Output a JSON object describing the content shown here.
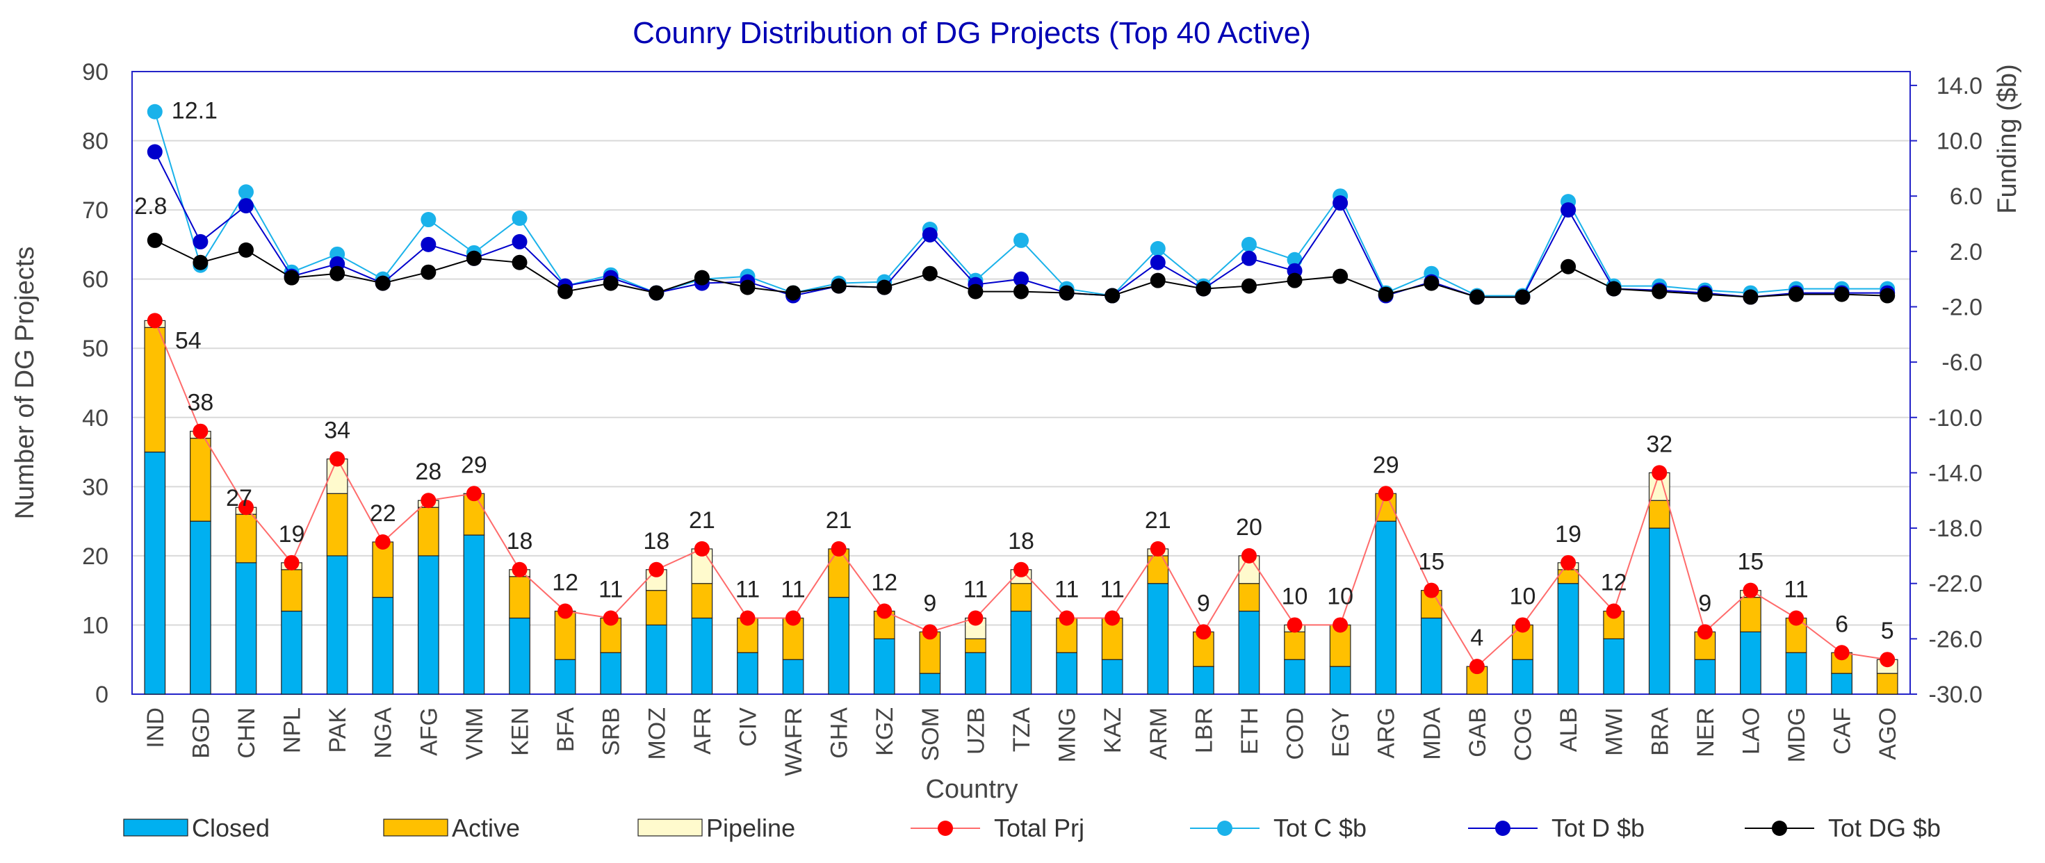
{
  "chart_data": {
    "type": "bar",
    "title": "Counry Distribution of DG Projects (Top 40 Active)",
    "xlabel": "Country",
    "ylabel": "Number of DG Projects",
    "y2label": "Funding ($b)",
    "ylim": [
      0,
      90
    ],
    "y2lim": [
      -30,
      15
    ],
    "yticks": [
      "0",
      "10",
      "20",
      "30",
      "40",
      "50",
      "60",
      "70",
      "80",
      "90"
    ],
    "y2ticks": [
      "-30.0",
      "-26.0",
      "-22.0",
      "-18.0",
      "-14.0",
      "-10.0",
      "-6.0",
      "-2.0",
      "2.0",
      "6.0",
      "10.0",
      "14.0"
    ],
    "categories": [
      "IND",
      "BGD",
      "CHN",
      "NPL",
      "PAK",
      "NGA",
      "AFG",
      "VNM",
      "KEN",
      "BFA",
      "SRB",
      "MOZ",
      "AFR",
      "CIV",
      "WAFR",
      "GHA",
      "KGZ",
      "SOM",
      "UZB",
      "TZA",
      "MNG",
      "KAZ",
      "ARM",
      "LBR",
      "ETH",
      "COD",
      "EGY",
      "ARG",
      "MDA",
      "GAB",
      "COG",
      "ALB",
      "MWI",
      "BRA",
      "NER",
      "LAO",
      "MDG",
      "CAF",
      "AGO"
    ],
    "series": [
      {
        "name": "Closed",
        "kind": "bar",
        "color": "#00b0f0",
        "values": [
          35,
          25,
          19,
          12,
          20,
          14,
          20,
          23,
          11,
          5,
          6,
          10,
          11,
          6,
          5,
          14,
          8,
          3,
          6,
          12,
          6,
          5,
          16,
          4,
          12,
          5,
          4,
          25,
          11,
          0,
          5,
          16,
          8,
          24,
          5,
          9,
          6,
          3,
          0
        ]
      },
      {
        "name": "Active",
        "kind": "bar",
        "color": "#ffc000",
        "values": [
          18,
          12,
          7,
          6,
          9,
          8,
          7,
          6,
          6,
          7,
          5,
          5,
          5,
          5,
          6,
          7,
          4,
          6,
          2,
          4,
          5,
          6,
          4,
          5,
          4,
          4,
          6,
          4,
          4,
          4,
          5,
          2,
          4,
          4,
          4,
          5,
          5,
          3,
          3
        ]
      },
      {
        "name": "Pipeline",
        "kind": "bar",
        "color": "#fffacd",
        "values": [
          1,
          1,
          1,
          1,
          5,
          0,
          1,
          0,
          1,
          0,
          0,
          3,
          5,
          0,
          0,
          0,
          0,
          0,
          3,
          2,
          0,
          0,
          1,
          0,
          4,
          1,
          0,
          0,
          0,
          0,
          0,
          1,
          0,
          4,
          0,
          1,
          0,
          0,
          2
        ]
      },
      {
        "name": "Total Prj",
        "kind": "line",
        "axis": "left",
        "color": "#ff0000",
        "line_color": "#ff6b6b",
        "values": [
          54,
          38,
          27,
          19,
          34,
          22,
          28,
          29,
          18,
          12,
          11,
          18,
          21,
          11,
          11,
          21,
          12,
          9,
          11,
          18,
          11,
          11,
          21,
          9,
          20,
          10,
          10,
          29,
          15,
          4,
          10,
          19,
          12,
          32,
          9,
          15,
          11,
          6,
          5
        ]
      },
      {
        "name": "Tot C $b",
        "kind": "line",
        "axis": "right",
        "color": "#1ab2ea",
        "values": [
          12.1,
          1.0,
          6.3,
          0.5,
          1.8,
          0.0,
          4.3,
          1.9,
          4.4,
          -0.5,
          0.3,
          -1.0,
          0.0,
          0.2,
          -1.0,
          -0.3,
          -0.2,
          3.6,
          -0.1,
          2.8,
          -0.7,
          -1.2,
          2.2,
          -0.5,
          2.5,
          1.4,
          6.0,
          -1.0,
          0.4,
          -1.2,
          -1.2,
          5.6,
          -0.5,
          -0.5,
          -0.8,
          -1.0,
          -0.7,
          -0.7,
          -0.7
        ]
      },
      {
        "name": "Tot D $b",
        "kind": "line",
        "axis": "right",
        "color": "#0000cc",
        "values": [
          9.2,
          2.7,
          5.3,
          0.2,
          1.1,
          -0.3,
          2.5,
          1.5,
          2.7,
          -0.5,
          0.1,
          -1.0,
          -0.3,
          -0.2,
          -1.2,
          -0.5,
          -0.6,
          3.2,
          -0.4,
          0.0,
          -1.0,
          -1.2,
          1.2,
          -0.7,
          1.5,
          0.6,
          5.5,
          -1.2,
          -0.2,
          -1.3,
          -1.3,
          5.0,
          -0.7,
          -0.8,
          -1.0,
          -1.3,
          -1.0,
          -1.0,
          -1.0
        ]
      },
      {
        "name": "Tot DG $b",
        "kind": "line",
        "axis": "right",
        "color": "#000000",
        "values": [
          2.8,
          1.2,
          2.1,
          0.1,
          0.4,
          -0.3,
          0.5,
          1.5,
          1.2,
          -0.9,
          -0.3,
          -1.0,
          0.1,
          -0.6,
          -1.0,
          -0.5,
          -0.6,
          0.4,
          -0.9,
          -0.9,
          -1.0,
          -1.2,
          -0.1,
          -0.7,
          -0.5,
          -0.1,
          0.2,
          -1.1,
          -0.3,
          -1.3,
          -1.3,
          0.9,
          -0.7,
          -0.9,
          -1.1,
          -1.3,
          -1.1,
          -1.1,
          -1.2
        ]
      }
    ],
    "total_labels": [
      "54",
      "38",
      "27",
      "19",
      "34",
      "22",
      "28",
      "29",
      "18",
      "12",
      "11",
      "18",
      "21",
      "11",
      "11",
      "21",
      "12",
      "9",
      "11",
      "18",
      "11",
      "11",
      "21",
      "9",
      "20",
      "10",
      "10",
      "29",
      "15",
      "4",
      "10",
      "19",
      "12",
      "32",
      "9",
      "15",
      "11",
      "6",
      "5"
    ],
    "annotations": [
      "12.1",
      "2.8"
    ],
    "legend_position": "bottom"
  }
}
